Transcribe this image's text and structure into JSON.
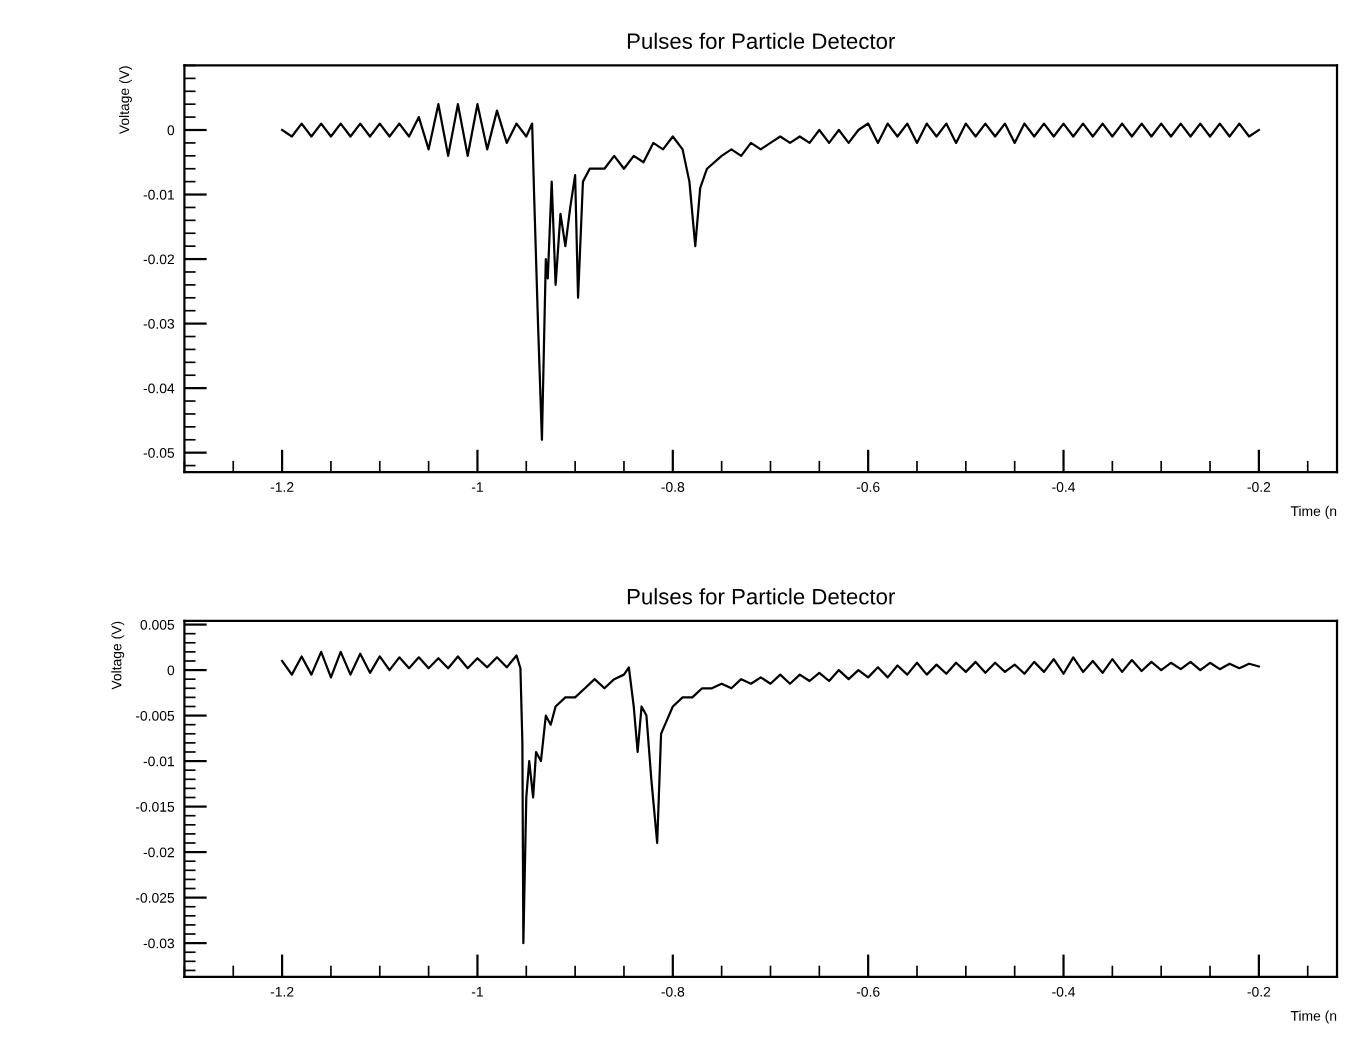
{
  "chart_data": [
    {
      "type": "line",
      "title": "Pulses for Particle Detector",
      "xlabel": "Time (n",
      "ylabel": "Voltage (V)",
      "xlim": [
        -1.3,
        -0.12
      ],
      "ylim": [
        -0.053,
        0.01
      ],
      "xticks": [
        {
          "value": -1.2,
          "label": "-1.2"
        },
        {
          "value": -1,
          "label": "-1"
        },
        {
          "value": -0.8,
          "label": "-0.8"
        },
        {
          "value": -0.6,
          "label": "-0.6"
        },
        {
          "value": -0.4,
          "label": "-0.4"
        },
        {
          "value": -0.2,
          "label": "-0.2"
        }
      ],
      "yticks": [
        {
          "value": -0.05,
          "label": "-0.05"
        },
        {
          "value": -0.04,
          "label": "-0.04"
        },
        {
          "value": -0.03,
          "label": "-0.03"
        },
        {
          "value": -0.02,
          "label": "-0.02"
        },
        {
          "value": -0.01,
          "label": "-0.01"
        },
        0
      ],
      "grid": false,
      "marker": "none",
      "line_style": "solid",
      "series": [
        {
          "color": "#000000",
          "x": [
            -1.2,
            -1.19,
            -1.18,
            -1.17,
            -1.16,
            -1.15,
            -1.14,
            -1.13,
            -1.12,
            -1.11,
            -1.1,
            -1.09,
            -1.08,
            -1.07,
            -1.06,
            -1.05,
            -1.04,
            -1.03,
            -1.02,
            -1.01,
            -1.0,
            -0.99,
            -0.98,
            -0.97,
            -0.96,
            -0.95,
            -0.944,
            -0.942,
            -0.938,
            -0.934,
            -0.93,
            -0.928,
            -0.924,
            -0.92,
            -0.915,
            -0.91,
            -0.905,
            -0.9,
            -0.897,
            -0.892,
            -0.885,
            -0.87,
            -0.86,
            -0.85,
            -0.84,
            -0.83,
            -0.82,
            -0.81,
            -0.8,
            -0.79,
            -0.783,
            -0.777,
            -0.772,
            -0.765,
            -0.75,
            -0.74,
            -0.73,
            -0.72,
            -0.71,
            -0.7,
            -0.69,
            -0.68,
            -0.67,
            -0.66,
            -0.65,
            -0.64,
            -0.63,
            -0.62,
            -0.61,
            -0.6,
            -0.59,
            -0.58,
            -0.57,
            -0.56,
            -0.55,
            -0.54,
            -0.53,
            -0.52,
            -0.51,
            -0.5,
            -0.49,
            -0.48,
            -0.47,
            -0.46,
            -0.45,
            -0.44,
            -0.43,
            -0.42,
            -0.41,
            -0.4,
            -0.39,
            -0.38,
            -0.37,
            -0.36,
            -0.35,
            -0.34,
            -0.33,
            -0.32,
            -0.31,
            -0.3,
            -0.29,
            -0.28,
            -0.27,
            -0.26,
            -0.25,
            -0.24,
            -0.23,
            -0.22,
            -0.21,
            -0.2
          ],
          "values": [
            0,
            -0.001,
            0.001,
            -0.001,
            0.001,
            -0.001,
            0.001,
            -0.001,
            0.001,
            -0.001,
            0.001,
            -0.001,
            0.001,
            -0.001,
            0.002,
            -0.003,
            0.004,
            -0.004,
            0.004,
            -0.004,
            0.004,
            -0.003,
            0.003,
            -0.002,
            0.001,
            -0.001,
            0.001,
            -0.01,
            -0.03,
            -0.048,
            -0.02,
            -0.023,
            -0.008,
            -0.024,
            -0.013,
            -0.018,
            -0.012,
            -0.007,
            -0.026,
            -0.008,
            -0.006,
            -0.006,
            -0.004,
            -0.006,
            -0.004,
            -0.005,
            -0.002,
            -0.003,
            -0.001,
            -0.003,
            -0.008,
            -0.018,
            -0.009,
            -0.006,
            -0.004,
            -0.003,
            -0.004,
            -0.002,
            -0.003,
            -0.002,
            -0.001,
            -0.002,
            -0.001,
            -0.002,
            0,
            -0.002,
            0,
            -0.002,
            0,
            0.001,
            -0.002,
            0.001,
            -0.001,
            0.001,
            -0.002,
            0.001,
            -0.001,
            0.001,
            -0.002,
            0.001,
            -0.001,
            0.001,
            -0.001,
            0.001,
            -0.002,
            0.001,
            -0.001,
            0.001,
            -0.001,
            0.001,
            -0.001,
            0.001,
            -0.001,
            0.001,
            -0.001,
            0.001,
            -0.001,
            0.001,
            -0.001,
            0.001,
            -0.001,
            0.001,
            -0.001,
            0.001,
            -0.001,
            0.001,
            -0.001,
            0.001,
            -0.001,
            0
          ]
        }
      ]
    },
    {
      "type": "line",
      "title": "Pulses for Particle Detector",
      "xlabel": "Time (n",
      "ylabel": "Voltage (V)",
      "xlim": [
        -1.3,
        -0.12
      ],
      "ylim": [
        -0.0337,
        0.0054
      ],
      "xticks": [
        {
          "value": -1.2,
          "label": "-1.2"
        },
        {
          "value": -1,
          "label": "-1"
        },
        {
          "value": -0.8,
          "label": "-0.8"
        },
        {
          "value": -0.6,
          "label": "-0.6"
        },
        {
          "value": -0.4,
          "label": "-0.4"
        },
        {
          "value": -0.2,
          "label": "-0.2"
        }
      ],
      "yticks": [
        {
          "value": -0.03,
          "label": "-0.03"
        },
        {
          "value": -0.025,
          "label": "-0.025"
        },
        {
          "value": -0.02,
          "label": "-0.02"
        },
        {
          "value": -0.015,
          "label": "-0.015"
        },
        {
          "value": -0.01,
          "label": "-0.01"
        },
        {
          "value": -0.005,
          "label": "-0.005"
        },
        0,
        0.005
      ],
      "grid": false,
      "marker": "none",
      "line_style": "solid",
      "series": [
        {
          "color": "#000000",
          "x": [
            -1.2,
            -1.19,
            -1.18,
            -1.17,
            -1.16,
            -1.15,
            -1.14,
            -1.13,
            -1.12,
            -1.11,
            -1.1,
            -1.09,
            -1.08,
            -1.07,
            -1.06,
            -1.05,
            -1.04,
            -1.03,
            -1.02,
            -1.01,
            -1.0,
            -0.99,
            -0.98,
            -0.97,
            -0.96,
            -0.956,
            -0.954,
            -0.953,
            -0.95,
            -0.947,
            -0.943,
            -0.94,
            -0.935,
            -0.93,
            -0.925,
            -0.92,
            -0.91,
            -0.9,
            -0.89,
            -0.88,
            -0.87,
            -0.86,
            -0.85,
            -0.845,
            -0.84,
            -0.836,
            -0.832,
            -0.827,
            -0.822,
            -0.816,
            -0.812,
            -0.808,
            -0.8,
            -0.79,
            -0.78,
            -0.77,
            -0.76,
            -0.75,
            -0.74,
            -0.73,
            -0.72,
            -0.71,
            -0.7,
            -0.69,
            -0.68,
            -0.67,
            -0.66,
            -0.65,
            -0.64,
            -0.63,
            -0.62,
            -0.61,
            -0.6,
            -0.59,
            -0.58,
            -0.57,
            -0.56,
            -0.55,
            -0.54,
            -0.53,
            -0.52,
            -0.51,
            -0.5,
            -0.49,
            -0.48,
            -0.47,
            -0.46,
            -0.45,
            -0.44,
            -0.43,
            -0.42,
            -0.41,
            -0.4,
            -0.39,
            -0.38,
            -0.37,
            -0.36,
            -0.35,
            -0.34,
            -0.33,
            -0.32,
            -0.31,
            -0.3,
            -0.29,
            -0.28,
            -0.27,
            -0.26,
            -0.25,
            -0.24,
            -0.23,
            -0.22,
            -0.21,
            -0.2
          ],
          "values": [
            0.001,
            -0.0005,
            0.0015,
            -0.0005,
            0.002,
            -0.0008,
            0.002,
            -0.0005,
            0.0018,
            -0.0003,
            0.0015,
            0,
            0.0014,
            0.0002,
            0.0014,
            0.0002,
            0.0013,
            0.0002,
            0.0015,
            0.0002,
            0.0013,
            0.0003,
            0.0014,
            0.0003,
            0.0016,
            0.0002,
            -0.008,
            -0.03,
            -0.014,
            -0.01,
            -0.014,
            -0.009,
            -0.01,
            -0.005,
            -0.006,
            -0.004,
            -0.003,
            -0.003,
            -0.002,
            -0.001,
            -0.002,
            -0.001,
            -0.0005,
            0.0003,
            -0.004,
            -0.009,
            -0.004,
            -0.005,
            -0.012,
            -0.019,
            -0.007,
            -0.006,
            -0.004,
            -0.003,
            -0.003,
            -0.002,
            -0.002,
            -0.0015,
            -0.002,
            -0.001,
            -0.0015,
            -0.0008,
            -0.0015,
            -0.0005,
            -0.0015,
            -0.0005,
            -0.0012,
            -0.0003,
            -0.0012,
            0,
            -0.001,
            0,
            -0.0008,
            0.0003,
            -0.0008,
            0.0005,
            -0.0005,
            0.0008,
            -0.0005,
            0.0006,
            -0.0004,
            0.0008,
            -0.0002,
            0.0009,
            -0.0003,
            0.0008,
            -0.0002,
            0.0006,
            -0.0004,
            0.0009,
            -0.0002,
            0.0012,
            -0.0004,
            0.0014,
            -0.0002,
            0.001,
            -0.0003,
            0.0012,
            -0.0002,
            0.0011,
            -0.0001,
            0.0009,
            0,
            0.0008,
            0.0001,
            0.0009,
            0,
            0.0008,
            0.0001,
            0.0007,
            0.0002,
            0.0007,
            0.0004
          ]
        }
      ]
    }
  ]
}
